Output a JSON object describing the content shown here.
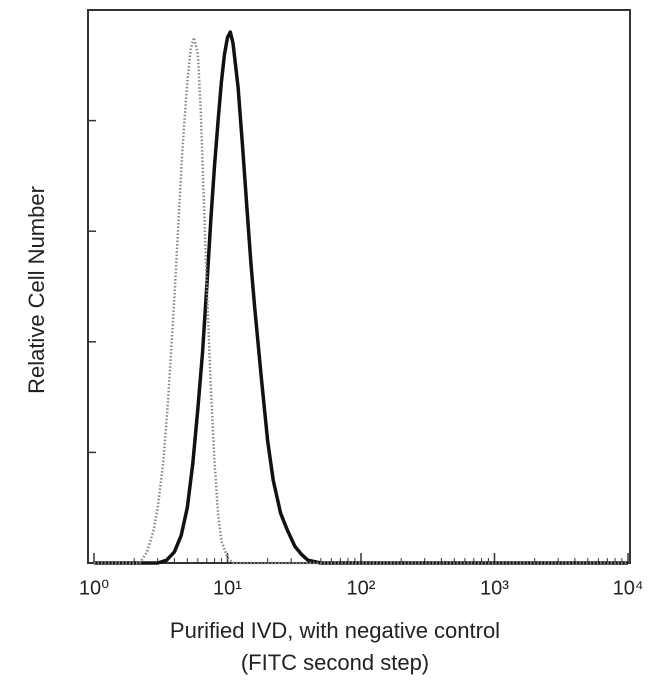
{
  "chart_data": {
    "type": "line",
    "xlabel": [
      "Purified IVD, with negative control",
      "(FITC second step)"
    ],
    "ylabel": "Relative Cell Number",
    "xscale": "log",
    "xlim": [
      1,
      10000
    ],
    "xticks": [
      {
        "value": 1,
        "label": "10⁰"
      },
      {
        "value": 10,
        "label": "10¹"
      },
      {
        "value": 100,
        "label": "10²"
      },
      {
        "value": 1000,
        "label": "10³"
      },
      {
        "value": 10000,
        "label": "10⁴"
      }
    ],
    "ylim": [
      0,
      100
    ],
    "yticks": [
      0,
      20,
      40,
      60,
      80
    ],
    "series": [
      {
        "color": "#111111",
        "style": "solid",
        "x": [
          1,
          3,
          3.5,
          4,
          4.5,
          5,
          5.5,
          6,
          6.5,
          7,
          7.5,
          8,
          8.5,
          9,
          9.5,
          10,
          10.5,
          11,
          12,
          13,
          14,
          15,
          16,
          18,
          20,
          22,
          25,
          28,
          32,
          36,
          40,
          50,
          10000
        ],
        "values": [
          0,
          0,
          0.5,
          2,
          5,
          10,
          18,
          28,
          38,
          50,
          62,
          72,
          80,
          87,
          92,
          95,
          96,
          94,
          86,
          75,
          64,
          54,
          46,
          33,
          22,
          15,
          9,
          6,
          3,
          1.5,
          0.5,
          0,
          0
        ]
      },
      {
        "color": "#888888",
        "style": "dotted",
        "x": [
          1,
          2.2,
          2.5,
          2.8,
          3,
          3.3,
          3.6,
          4,
          4.3,
          4.6,
          5,
          5.3,
          5.6,
          6,
          6.3,
          6.6,
          7,
          7.5,
          8,
          8.5,
          9,
          10,
          11,
          10000
        ],
        "values": [
          0,
          0,
          2,
          6,
          10,
          18,
          30,
          48,
          62,
          75,
          87,
          93,
          95,
          92,
          82,
          68,
          50,
          32,
          18,
          9,
          4,
          1,
          0,
          0
        ]
      }
    ]
  }
}
